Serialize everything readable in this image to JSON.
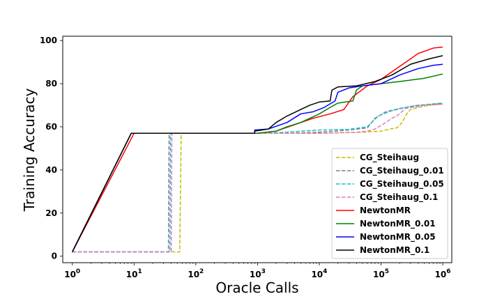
{
  "chart_data": {
    "type": "line",
    "xscale": "log",
    "xlabel": "Oracle Calls",
    "ylabel": "Training Accuracy",
    "xlim": [
      0.7,
      1400000
    ],
    "ylim": [
      -3,
      102
    ],
    "x_ticks": [
      {
        "value": 1,
        "base": "10",
        "exp": "0"
      },
      {
        "value": 10,
        "base": "10",
        "exp": "1"
      },
      {
        "value": 100,
        "base": "10",
        "exp": "2"
      },
      {
        "value": 1000,
        "base": "10",
        "exp": "3"
      },
      {
        "value": 10000,
        "base": "10",
        "exp": "4"
      },
      {
        "value": 100000,
        "base": "10",
        "exp": "5"
      },
      {
        "value": 1000000,
        "base": "10",
        "exp": "6"
      }
    ],
    "y_ticks": [
      0,
      20,
      40,
      60,
      80,
      100
    ],
    "grid": false,
    "legend_position": "lower-right",
    "series": [
      {
        "name": "CG_Steihaug",
        "color": "#bfbf00",
        "dash": "dashed",
        "points": [
          [
            1,
            2
          ],
          [
            50,
            2
          ],
          [
            55,
            2
          ],
          [
            58,
            57
          ],
          [
            1000,
            57
          ],
          [
            10000,
            57
          ],
          [
            50000,
            57.5
          ],
          [
            100000,
            58
          ],
          [
            140000,
            59
          ],
          [
            180000,
            59.5
          ],
          [
            220000,
            62
          ],
          [
            260000,
            66
          ],
          [
            300000,
            68
          ],
          [
            400000,
            69
          ],
          [
            600000,
            70
          ],
          [
            1000000,
            70.5
          ]
        ]
      },
      {
        "name": "CG_Steihaug_0.01",
        "color": "#7f7f7f",
        "dash": "dashed",
        "points": [
          [
            1,
            2
          ],
          [
            36,
            2
          ],
          [
            37,
            57
          ],
          [
            1000,
            57
          ],
          [
            3000,
            57
          ],
          [
            10000,
            57.5
          ],
          [
            30000,
            58.5
          ],
          [
            60000,
            59.5
          ],
          [
            80000,
            64
          ],
          [
            120000,
            67
          ],
          [
            200000,
            68.5
          ],
          [
            400000,
            70
          ],
          [
            1000000,
            71
          ]
        ]
      },
      {
        "name": "CG_Steihaug_0.05",
        "color": "#17becf",
        "dash": "dashed",
        "points": [
          [
            1,
            2
          ],
          [
            38,
            2
          ],
          [
            39,
            57
          ],
          [
            1000,
            57
          ],
          [
            3000,
            57.5
          ],
          [
            5000,
            58
          ],
          [
            10000,
            58.5
          ],
          [
            30000,
            58.8
          ],
          [
            60000,
            60
          ],
          [
            90000,
            65
          ],
          [
            150000,
            67.5
          ],
          [
            300000,
            69.5
          ],
          [
            1000000,
            71
          ]
        ]
      },
      {
        "name": "CG_Steihaug_0.1",
        "color": "#e377c2",
        "dash": "dashed",
        "points": [
          [
            1,
            2
          ],
          [
            40,
            2
          ],
          [
            41,
            57
          ],
          [
            1000,
            57
          ],
          [
            10000,
            57
          ],
          [
            40000,
            57.5
          ],
          [
            60000,
            58
          ],
          [
            80000,
            59
          ],
          [
            120000,
            62
          ],
          [
            150000,
            64
          ],
          [
            180000,
            65
          ],
          [
            250000,
            68.5
          ],
          [
            500000,
            70
          ],
          [
            1000000,
            70.5
          ]
        ]
      },
      {
        "name": "NewtonMR",
        "color": "#ff0000",
        "dash": "solid",
        "points": [
          [
            1,
            2
          ],
          [
            10,
            57
          ],
          [
            1000,
            57
          ],
          [
            2000,
            58
          ],
          [
            4000,
            61
          ],
          [
            8000,
            64
          ],
          [
            15000,
            66
          ],
          [
            25000,
            68
          ],
          [
            35000,
            74
          ],
          [
            60000,
            79
          ],
          [
            100000,
            82
          ],
          [
            200000,
            88
          ],
          [
            400000,
            94
          ],
          [
            700000,
            96.5
          ],
          [
            1000000,
            97
          ]
        ]
      },
      {
        "name": "NewtonMR_0.01",
        "color": "#008000",
        "dash": "solid",
        "points": [
          [
            1,
            2
          ],
          [
            9,
            57
          ],
          [
            1000,
            57
          ],
          [
            2000,
            58
          ],
          [
            3000,
            60
          ],
          [
            5000,
            62
          ],
          [
            10000,
            66
          ],
          [
            15000,
            69
          ],
          [
            20000,
            71
          ],
          [
            35000,
            72
          ],
          [
            40000,
            77
          ],
          [
            50000,
            79
          ],
          [
            100000,
            80
          ],
          [
            200000,
            81
          ],
          [
            500000,
            82.5
          ],
          [
            1000000,
            84.5
          ]
        ]
      },
      {
        "name": "NewtonMR_0.05",
        "color": "#0000ff",
        "dash": "solid",
        "points": [
          [
            1,
            2
          ],
          [
            9,
            57
          ],
          [
            900,
            57
          ],
          [
            900,
            58.5
          ],
          [
            1500,
            59
          ],
          [
            3000,
            62
          ],
          [
            5000,
            66
          ],
          [
            8000,
            67
          ],
          [
            12000,
            69
          ],
          [
            18000,
            72
          ],
          [
            20000,
            76
          ],
          [
            30000,
            78
          ],
          [
            50000,
            79
          ],
          [
            100000,
            80
          ],
          [
            200000,
            84
          ],
          [
            400000,
            87
          ],
          [
            700000,
            88.5
          ],
          [
            1000000,
            89
          ]
        ]
      },
      {
        "name": "NewtonMR_0.1",
        "color": "#000000",
        "dash": "solid",
        "points": [
          [
            1,
            2
          ],
          [
            9,
            57
          ],
          [
            900,
            57
          ],
          [
            900,
            58
          ],
          [
            1500,
            59
          ],
          [
            2000,
            62
          ],
          [
            3000,
            65
          ],
          [
            5000,
            68
          ],
          [
            7000,
            70
          ],
          [
            10000,
            71.5
          ],
          [
            15000,
            72
          ],
          [
            16000,
            77
          ],
          [
            20000,
            78.5
          ],
          [
            40000,
            79
          ],
          [
            80000,
            81
          ],
          [
            150000,
            84
          ],
          [
            300000,
            89
          ],
          [
            600000,
            91.5
          ],
          [
            1000000,
            93
          ]
        ]
      }
    ]
  }
}
